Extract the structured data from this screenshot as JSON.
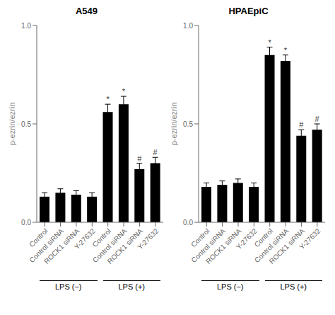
{
  "chart_data": [
    {
      "type": "bar",
      "title": "A549",
      "ylabel": "p-ezrin/ezrin",
      "categories": [
        "Control",
        "Control siRNA",
        "ROCK1 siRNA",
        "Y-27632",
        "Control",
        "Control siRNA",
        "ROCK1 siRNA",
        "Y-27632"
      ],
      "values": [
        0.13,
        0.15,
        0.14,
        0.13,
        0.56,
        0.6,
        0.27,
        0.3
      ],
      "errors": [
        0.02,
        0.02,
        0.02,
        0.02,
        0.04,
        0.04,
        0.03,
        0.03
      ],
      "color": "#000000",
      "ylim": [
        0.0,
        1.0
      ],
      "yticks": [
        {
          "value": 0.0,
          "label": "0.0"
        },
        {
          "value": 0.5,
          "label": "0.5"
        },
        {
          "value": 1.0,
          "label": "1.0"
        }
      ],
      "annotations": [
        {
          "text": "*",
          "index": 4
        },
        {
          "text": "*",
          "index": 5
        },
        {
          "text": "#",
          "index": 6
        },
        {
          "text": "#",
          "index": 7
        }
      ],
      "groups": [
        {
          "text": "LPS (−)",
          "from": 0,
          "to": 3
        },
        {
          "text": "LPS (+)",
          "from": 4,
          "to": 7
        }
      ]
    },
    {
      "type": "bar",
      "title": "HPAEpiC",
      "ylabel": "p-ezrin/ezrin",
      "categories": [
        "Control",
        "Control siRNA",
        "ROCK1 siRNA",
        "Y-27632",
        "Control",
        "Control siRNA",
        "ROCK1 siRNA",
        "Y-27632"
      ],
      "values": [
        0.18,
        0.19,
        0.2,
        0.18,
        0.85,
        0.82,
        0.44,
        0.47
      ],
      "errors": [
        0.02,
        0.02,
        0.02,
        0.02,
        0.04,
        0.03,
        0.03,
        0.03
      ],
      "color": "#000000",
      "ylim": [
        0.0,
        1.0
      ],
      "yticks": [
        {
          "value": 0.0,
          "label": "0.0"
        },
        {
          "value": 0.5,
          "label": "0.5"
        },
        {
          "value": 1.0,
          "label": "1.0"
        }
      ],
      "annotations": [
        {
          "text": "*",
          "index": 4
        },
        {
          "text": "*",
          "index": 5
        },
        {
          "text": "#",
          "index": 6
        },
        {
          "text": "#",
          "index": 7
        }
      ],
      "groups": [
        {
          "text": "LPS (−)",
          "from": 0,
          "to": 3
        },
        {
          "text": "LPS (+)",
          "from": 4,
          "to": 7
        }
      ]
    }
  ]
}
